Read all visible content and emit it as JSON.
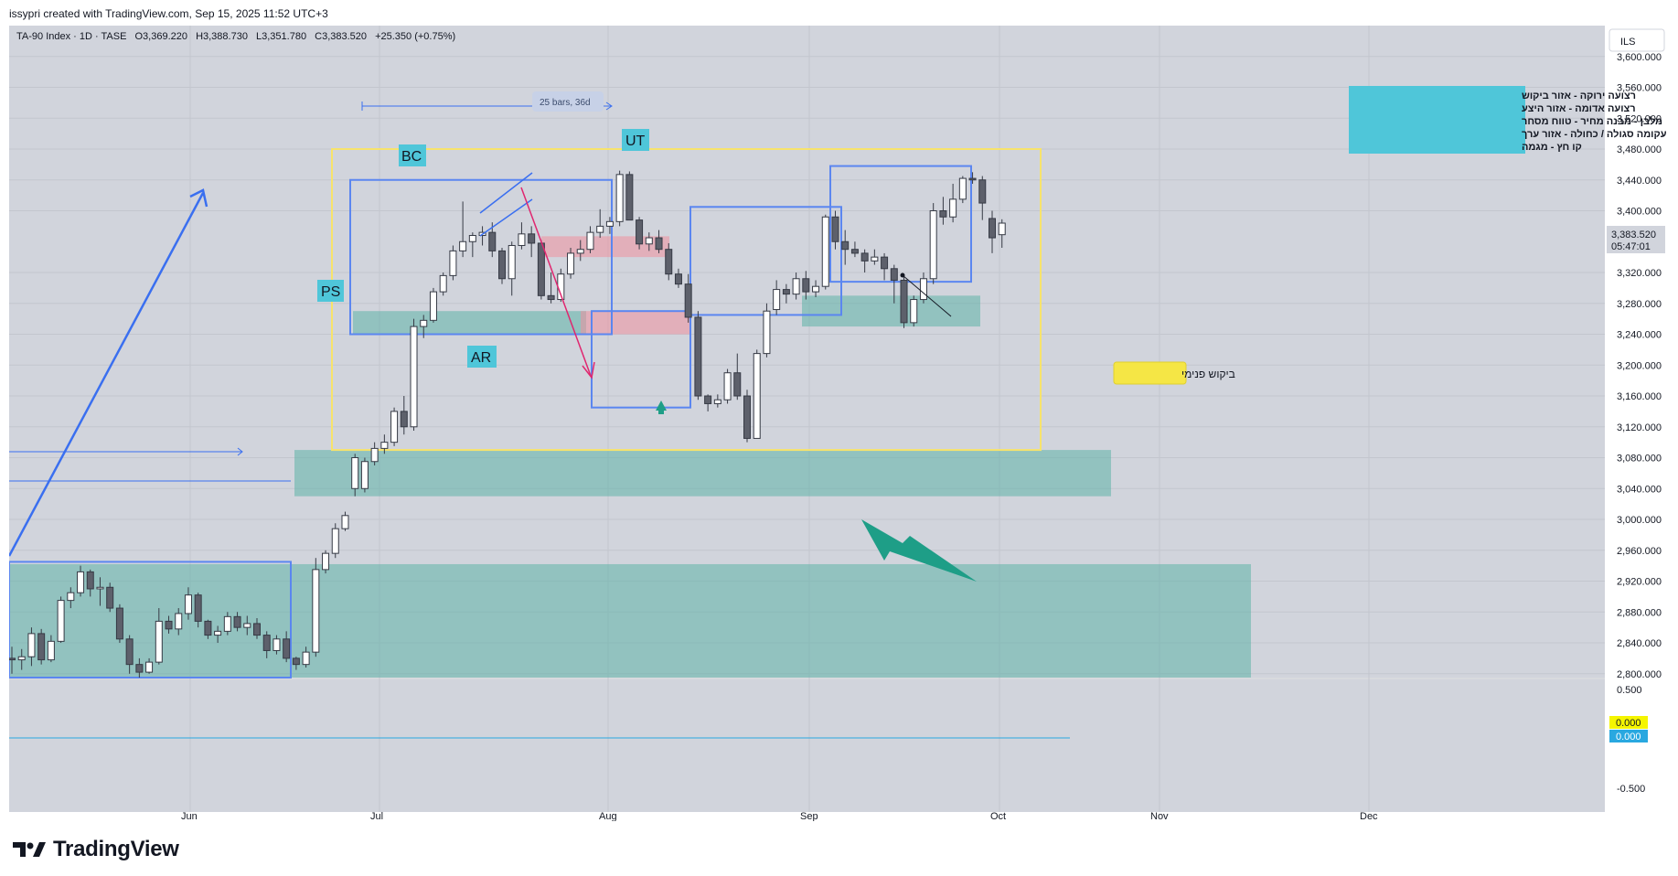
{
  "header": {
    "credit": "issypri created with TradingView.com, Sep 15, 2025 11:52 UTC+3"
  },
  "brand": {
    "name": "TradingView",
    "logo_icon": "tradingview-logo"
  },
  "chart_data": {
    "type": "candlestick",
    "legend": {
      "symbol": "TA-90 Index · 1D · TASE",
      "open": "O3,369.220",
      "high": "H3,388.730",
      "low": "L3,351.780",
      "close": "C3,383.520",
      "change": "+25.350 (+0.75%)"
    },
    "currency": "ILS",
    "y_ticks": [
      "3,600.000",
      "3,560.000",
      "3,520.000",
      "3,480.000",
      "3,440.000",
      "3,400.000",
      "3,320.000",
      "3,280.000",
      "3,240.000",
      "3,200.000",
      "3,160.000",
      "3,120.000",
      "3,080.000",
      "3,040.000",
      "3,000.000",
      "2,960.000",
      "2,920.000",
      "2,880.000",
      "2,840.000",
      "2,800.000"
    ],
    "ylim": [
      2795,
      3640
    ],
    "last_price": "3,383.520",
    "countdown": "05:47:01",
    "x_ticks": [
      "Jun",
      "Jul",
      "Aug",
      "Sep",
      "Oct",
      "Nov",
      "Dec"
    ],
    "candles": [
      [
        2820,
        2835,
        2800,
        2818
      ],
      [
        2818,
        2832,
        2805,
        2822
      ],
      [
        2822,
        2860,
        2810,
        2852
      ],
      [
        2852,
        2858,
        2812,
        2818
      ],
      [
        2818,
        2850,
        2815,
        2842
      ],
      [
        2842,
        2900,
        2840,
        2895
      ],
      [
        2895,
        2912,
        2885,
        2905
      ],
      [
        2905,
        2940,
        2900,
        2932
      ],
      [
        2932,
        2935,
        2900,
        2910
      ],
      [
        2910,
        2925,
        2888,
        2912
      ],
      [
        2912,
        2918,
        2880,
        2885
      ],
      [
        2885,
        2890,
        2840,
        2845
      ],
      [
        2845,
        2850,
        2800,
        2812
      ],
      [
        2812,
        2820,
        2795,
        2802
      ],
      [
        2802,
        2820,
        2800,
        2815
      ],
      [
        2815,
        2885,
        2812,
        2868
      ],
      [
        2868,
        2875,
        2852,
        2858
      ],
      [
        2858,
        2885,
        2850,
        2878
      ],
      [
        2878,
        2912,
        2870,
        2902
      ],
      [
        2902,
        2905,
        2860,
        2868
      ],
      [
        2868,
        2870,
        2845,
        2850
      ],
      [
        2850,
        2862,
        2840,
        2855
      ],
      [
        2855,
        2880,
        2850,
        2874
      ],
      [
        2874,
        2880,
        2855,
        2860
      ],
      [
        2860,
        2875,
        2850,
        2865
      ],
      [
        2865,
        2872,
        2845,
        2850
      ],
      [
        2850,
        2855,
        2820,
        2830
      ],
      [
        2830,
        2850,
        2825,
        2845
      ],
      [
        2845,
        2855,
        2815,
        2820
      ],
      [
        2820,
        2822,
        2805,
        2812
      ],
      [
        2812,
        2835,
        2808,
        2828
      ],
      [
        2828,
        2950,
        2822,
        2935
      ],
      [
        2935,
        2960,
        2930,
        2956
      ],
      [
        2956,
        2995,
        2950,
        2988
      ],
      [
        2988,
        3010,
        2985,
        3005
      ],
      [
        3040,
        3085,
        3030,
        3080
      ],
      [
        3040,
        3080,
        3035,
        3075
      ],
      [
        3075,
        3100,
        3070,
        3092
      ],
      [
        3092,
        3110,
        3085,
        3100
      ],
      [
        3100,
        3145,
        3095,
        3140
      ],
      [
        3140,
        3160,
        3110,
        3120
      ],
      [
        3120,
        3260,
        3115,
        3250
      ],
      [
        3250,
        3265,
        3235,
        3258
      ],
      [
        3258,
        3300,
        3255,
        3295
      ],
      [
        3295,
        3320,
        3290,
        3316
      ],
      [
        3316,
        3355,
        3310,
        3348
      ],
      [
        3348,
        3412,
        3340,
        3360
      ],
      [
        3360,
        3372,
        3340,
        3368
      ],
      [
        3368,
        3380,
        3355,
        3372
      ],
      [
        3372,
        3385,
        3340,
        3348
      ],
      [
        3348,
        3352,
        3305,
        3312
      ],
      [
        3312,
        3360,
        3290,
        3355
      ],
      [
        3355,
        3385,
        3350,
        3370
      ],
      [
        3370,
        3380,
        3340,
        3358
      ],
      [
        3358,
        3362,
        3285,
        3290
      ],
      [
        3290,
        3320,
        3280,
        3285
      ],
      [
        3285,
        3325,
        3282,
        3318
      ],
      [
        3318,
        3352,
        3312,
        3345
      ],
      [
        3345,
        3362,
        3335,
        3350
      ],
      [
        3350,
        3380,
        3345,
        3372
      ],
      [
        3372,
        3402,
        3365,
        3380
      ],
      [
        3380,
        3392,
        3370,
        3386
      ],
      [
        3386,
        3452,
        3380,
        3447
      ],
      [
        3447,
        3451,
        3388,
        3388
      ],
      [
        3388,
        3392,
        3350,
        3357
      ],
      [
        3357,
        3372,
        3348,
        3365
      ],
      [
        3365,
        3375,
        3345,
        3350
      ],
      [
        3350,
        3358,
        3310,
        3318
      ],
      [
        3318,
        3325,
        3300,
        3305
      ],
      [
        3305,
        3318,
        3255,
        3262
      ],
      [
        3262,
        3270,
        3155,
        3160
      ],
      [
        3160,
        3162,
        3140,
        3150
      ],
      [
        3150,
        3162,
        3145,
        3155
      ],
      [
        3155,
        3195,
        3150,
        3190
      ],
      [
        3190,
        3215,
        3155,
        3160
      ],
      [
        3160,
        3168,
        3100,
        3105
      ],
      [
        3105,
        3220,
        3112,
        3215
      ],
      [
        3215,
        3280,
        3210,
        3270
      ],
      [
        3272,
        3310,
        3265,
        3298
      ],
      [
        3298,
        3305,
        3280,
        3292
      ],
      [
        3292,
        3320,
        3285,
        3312
      ],
      [
        3312,
        3322,
        3285,
        3295
      ],
      [
        3295,
        3310,
        3288,
        3302
      ],
      [
        3302,
        3395,
        3298,
        3392
      ],
      [
        3392,
        3400,
        3350,
        3360
      ],
      [
        3360,
        3375,
        3330,
        3350
      ],
      [
        3350,
        3360,
        3340,
        3345
      ],
      [
        3345,
        3350,
        3320,
        3335
      ],
      [
        3335,
        3350,
        3330,
        3340
      ],
      [
        3340,
        3345,
        3310,
        3325
      ],
      [
        3325,
        3330,
        3280,
        3310
      ],
      [
        3310,
        3315,
        3248,
        3255
      ],
      [
        3255,
        3290,
        3250,
        3285
      ],
      [
        3285,
        3320,
        3280,
        3312
      ],
      [
        3312,
        3410,
        3305,
        3400
      ],
      [
        3400,
        3418,
        3382,
        3392
      ],
      [
        3392,
        3435,
        3385,
        3415
      ],
      [
        3415,
        3445,
        3410,
        3442
      ],
      [
        3442,
        3450,
        3435,
        3440
      ],
      [
        3440,
        3445,
        3388,
        3410
      ],
      [
        3390,
        3400,
        3345,
        3365
      ],
      [
        3369,
        3389,
        3352,
        3384
      ]
    ],
    "zones": [
      {
        "type": "demand",
        "color": "#5fb3a8",
        "label": ""
      },
      {
        "type": "supply",
        "color": "#f08f9f",
        "label": ""
      }
    ],
    "range_box_color": "#f7e36b",
    "structure_box_color": "#5b86f0",
    "labels": {
      "ps": "PS",
      "bc": "BC",
      "ut": "UT",
      "ar": "AR",
      "range_measure": "25 bars, 36d",
      "internal_demand": "ביקוש פנימי"
    },
    "legend_box": {
      "lines": [
        "רצועה ירוקה - אזור ביקוש",
        "רצועה אדומה - אזור היצע",
        "מלבן - מבנה מחיר - טווח מסחר",
        "עקומה סגולה / כחולה - אזור ערך",
        "קו חץ - מגמה"
      ]
    },
    "indicator": {
      "ticks": [
        "0.500",
        "-0.500"
      ],
      "value_yellow": "0.000",
      "value_blue": "0.000"
    },
    "grid": true
  }
}
